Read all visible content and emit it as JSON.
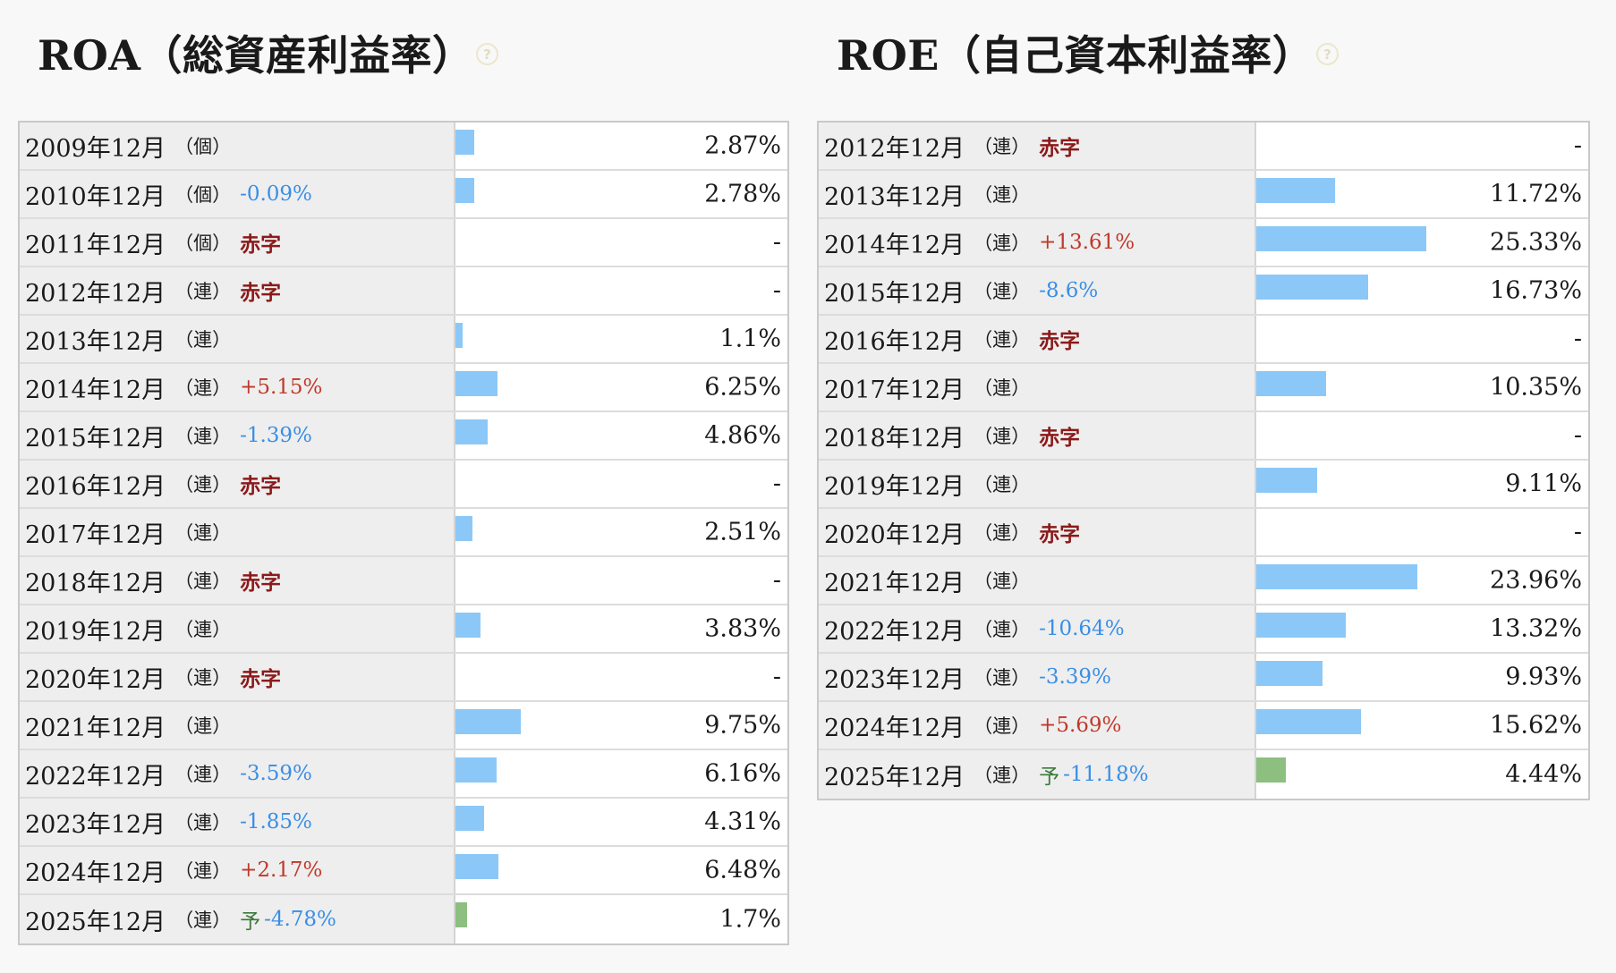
{
  "roa": {
    "title": "ROA（総資産利益率）",
    "help_icon": "question-icon",
    "max_scale": 50,
    "rows": [
      {
        "period": "2009年12月",
        "kind": "（個）",
        "forecast": "",
        "change": "",
        "change_type": "",
        "value": "2.87%",
        "bar": 2.87,
        "is_forecast": false
      },
      {
        "period": "2010年12月",
        "kind": "（個）",
        "forecast": "",
        "change": "-0.09%",
        "change_type": "down",
        "value": "2.78%",
        "bar": 2.78,
        "is_forecast": false
      },
      {
        "period": "2011年12月",
        "kind": "（個）",
        "forecast": "",
        "change": "赤字",
        "change_type": "deficit",
        "value": "-",
        "bar": 0,
        "is_forecast": false
      },
      {
        "period": "2012年12月",
        "kind": "（連）",
        "forecast": "",
        "change": "赤字",
        "change_type": "deficit",
        "value": "-",
        "bar": 0,
        "is_forecast": false
      },
      {
        "period": "2013年12月",
        "kind": "（連）",
        "forecast": "",
        "change": "",
        "change_type": "",
        "value": "1.1%",
        "bar": 1.1,
        "is_forecast": false
      },
      {
        "period": "2014年12月",
        "kind": "（連）",
        "forecast": "",
        "change": "+5.15%",
        "change_type": "up",
        "value": "6.25%",
        "bar": 6.25,
        "is_forecast": false
      },
      {
        "period": "2015年12月",
        "kind": "（連）",
        "forecast": "",
        "change": "-1.39%",
        "change_type": "down",
        "value": "4.86%",
        "bar": 4.86,
        "is_forecast": false
      },
      {
        "period": "2016年12月",
        "kind": "（連）",
        "forecast": "",
        "change": "赤字",
        "change_type": "deficit",
        "value": "-",
        "bar": 0,
        "is_forecast": false
      },
      {
        "period": "2017年12月",
        "kind": "（連）",
        "forecast": "",
        "change": "",
        "change_type": "",
        "value": "2.51%",
        "bar": 2.51,
        "is_forecast": false
      },
      {
        "period": "2018年12月",
        "kind": "（連）",
        "forecast": "",
        "change": "赤字",
        "change_type": "deficit",
        "value": "-",
        "bar": 0,
        "is_forecast": false
      },
      {
        "period": "2019年12月",
        "kind": "（連）",
        "forecast": "",
        "change": "",
        "change_type": "",
        "value": "3.83%",
        "bar": 3.83,
        "is_forecast": false
      },
      {
        "period": "2020年12月",
        "kind": "（連）",
        "forecast": "",
        "change": "赤字",
        "change_type": "deficit",
        "value": "-",
        "bar": 0,
        "is_forecast": false
      },
      {
        "period": "2021年12月",
        "kind": "（連）",
        "forecast": "",
        "change": "",
        "change_type": "",
        "value": "9.75%",
        "bar": 9.75,
        "is_forecast": false
      },
      {
        "period": "2022年12月",
        "kind": "（連）",
        "forecast": "",
        "change": "-3.59%",
        "change_type": "down",
        "value": "6.16%",
        "bar": 6.16,
        "is_forecast": false
      },
      {
        "period": "2023年12月",
        "kind": "（連）",
        "forecast": "",
        "change": "-1.85%",
        "change_type": "down",
        "value": "4.31%",
        "bar": 4.31,
        "is_forecast": false
      },
      {
        "period": "2024年12月",
        "kind": "（連）",
        "forecast": "",
        "change": "+2.17%",
        "change_type": "up",
        "value": "6.48%",
        "bar": 6.48,
        "is_forecast": false
      },
      {
        "period": "2025年12月",
        "kind": "（連）",
        "forecast": "予",
        "change": "-4.78%",
        "change_type": "down",
        "value": "1.7%",
        "bar": 1.7,
        "is_forecast": true
      }
    ]
  },
  "roe": {
    "title": "ROE（自己資本利益率）",
    "help_icon": "question-icon",
    "max_scale": 50,
    "rows": [
      {
        "period": "2012年12月",
        "kind": "（連）",
        "forecast": "",
        "change": "赤字",
        "change_type": "deficit",
        "value": "-",
        "bar": 0,
        "is_forecast": false
      },
      {
        "period": "2013年12月",
        "kind": "（連）",
        "forecast": "",
        "change": "",
        "change_type": "",
        "value": "11.72%",
        "bar": 11.72,
        "is_forecast": false
      },
      {
        "period": "2014年12月",
        "kind": "（連）",
        "forecast": "",
        "change": "+13.61%",
        "change_type": "up",
        "value": "25.33%",
        "bar": 25.33,
        "is_forecast": false
      },
      {
        "period": "2015年12月",
        "kind": "（連）",
        "forecast": "",
        "change": "-8.6%",
        "change_type": "down",
        "value": "16.73%",
        "bar": 16.73,
        "is_forecast": false
      },
      {
        "period": "2016年12月",
        "kind": "（連）",
        "forecast": "",
        "change": "赤字",
        "change_type": "deficit",
        "value": "-",
        "bar": 0,
        "is_forecast": false
      },
      {
        "period": "2017年12月",
        "kind": "（連）",
        "forecast": "",
        "change": "",
        "change_type": "",
        "value": "10.35%",
        "bar": 10.35,
        "is_forecast": false
      },
      {
        "period": "2018年12月",
        "kind": "（連）",
        "forecast": "",
        "change": "赤字",
        "change_type": "deficit",
        "value": "-",
        "bar": 0,
        "is_forecast": false
      },
      {
        "period": "2019年12月",
        "kind": "（連）",
        "forecast": "",
        "change": "",
        "change_type": "",
        "value": "9.11%",
        "bar": 9.11,
        "is_forecast": false
      },
      {
        "period": "2020年12月",
        "kind": "（連）",
        "forecast": "",
        "change": "赤字",
        "change_type": "deficit",
        "value": "-",
        "bar": 0,
        "is_forecast": false
      },
      {
        "period": "2021年12月",
        "kind": "（連）",
        "forecast": "",
        "change": "",
        "change_type": "",
        "value": "23.96%",
        "bar": 23.96,
        "is_forecast": false
      },
      {
        "period": "2022年12月",
        "kind": "（連）",
        "forecast": "",
        "change": "-10.64%",
        "change_type": "down",
        "value": "13.32%",
        "bar": 13.32,
        "is_forecast": false
      },
      {
        "period": "2023年12月",
        "kind": "（連）",
        "forecast": "",
        "change": "-3.39%",
        "change_type": "down",
        "value": "9.93%",
        "bar": 9.93,
        "is_forecast": false
      },
      {
        "period": "2024年12月",
        "kind": "（連）",
        "forecast": "",
        "change": "+5.69%",
        "change_type": "up",
        "value": "15.62%",
        "bar": 15.62,
        "is_forecast": false
      },
      {
        "period": "2025年12月",
        "kind": "（連）",
        "forecast": "予",
        "change": "-11.18%",
        "change_type": "down",
        "value": "4.44%",
        "bar": 4.44,
        "is_forecast": true
      }
    ]
  }
}
